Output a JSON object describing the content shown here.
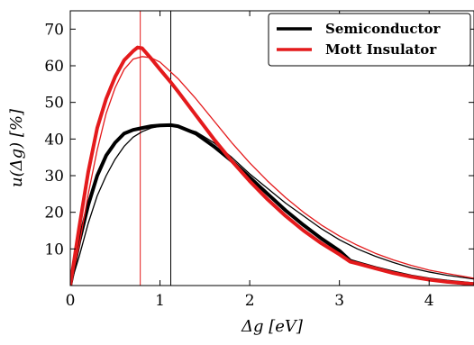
{
  "chart_data": {
    "type": "line",
    "title": "",
    "xlabel": "Δg [eV]",
    "ylabel": "u(Δg) [%]",
    "xlim": [
      0,
      4.5
    ],
    "ylim": [
      0,
      75
    ],
    "x_ticks": [
      0,
      1,
      2,
      3,
      4
    ],
    "y_ticks": [
      10,
      20,
      30,
      40,
      50,
      60,
      70
    ],
    "x_tick_labels": [
      "0",
      "1",
      "2",
      "3",
      "4"
    ],
    "y_tick_labels": [
      "10",
      "20",
      "30",
      "40",
      "50",
      "60",
      "70"
    ],
    "grid": false,
    "legend_position": "top-right",
    "vertical_lines": [
      {
        "x": 1.12,
        "color": "#000000"
      },
      {
        "x": 0.78,
        "color": "#e41a1c"
      }
    ],
    "series": [
      {
        "name": "Semiconductor",
        "color": "#000000",
        "style": "thick",
        "x": [
          0.0,
          0.1,
          0.2,
          0.3,
          0.4,
          0.5,
          0.6,
          0.7,
          0.8,
          0.9,
          1.0,
          1.12,
          1.2,
          1.4,
          1.6,
          1.8,
          2.0,
          2.2,
          2.4,
          2.6,
          2.8,
          3.0,
          3.12,
          3.2,
          3.4,
          3.6,
          3.8,
          4.0,
          4.2,
          4.5
        ],
        "y": [
          0,
          12,
          22,
          30,
          35.5,
          39,
          41.5,
          42.5,
          43,
          43.5,
          43.7,
          43.8,
          43.5,
          41.5,
          38,
          34,
          29.5,
          25,
          20.5,
          16.5,
          12.8,
          9.5,
          6.8,
          6.2,
          4.8,
          3.6,
          2.5,
          1.7,
          1.1,
          0.4
        ]
      },
      {
        "name": "",
        "color": "#000000",
        "style": "thin",
        "x": [
          0.0,
          0.1,
          0.2,
          0.3,
          0.4,
          0.5,
          0.6,
          0.7,
          0.8,
          0.9,
          1.0,
          1.1,
          1.2,
          1.4,
          1.6,
          1.8,
          2.0,
          2.2,
          2.4,
          2.6,
          2.8,
          3.0,
          3.2,
          3.4,
          3.6,
          3.8,
          4.0,
          4.2,
          4.5
        ],
        "y": [
          0,
          8,
          17,
          24.5,
          30,
          34.5,
          38,
          40.5,
          42,
          43,
          43.5,
          43.6,
          43.4,
          42,
          39,
          35,
          30.5,
          26.5,
          22.5,
          19,
          15.5,
          12.5,
          10,
          8,
          6.3,
          4.8,
          3.7,
          2.8,
          1.8
        ]
      },
      {
        "name": "Mott Insulator",
        "color": "#e41a1c",
        "style": "thick",
        "x": [
          0.0,
          0.1,
          0.2,
          0.3,
          0.4,
          0.5,
          0.6,
          0.7,
          0.75,
          0.8,
          0.9,
          1.0,
          1.12,
          1.2,
          1.4,
          1.6,
          1.8,
          2.0,
          2.2,
          2.4,
          2.6,
          2.8,
          3.0,
          3.12,
          3.2,
          3.4,
          3.6,
          3.8,
          4.0,
          4.2,
          4.5
        ],
        "y": [
          0,
          16,
          31,
          43,
          51,
          57,
          61.5,
          64,
          65,
          64.8,
          62,
          59,
          55.5,
          53,
          46.5,
          40,
          34,
          28.5,
          23.5,
          19,
          15,
          11.5,
          8.5,
          6.5,
          6.0,
          4.7,
          3.4,
          2.4,
          1.6,
          1.0,
          0.4
        ]
      },
      {
        "name": "",
        "color": "#e41a1c",
        "style": "thin",
        "x": [
          0.0,
          0.1,
          0.2,
          0.3,
          0.4,
          0.5,
          0.6,
          0.7,
          0.8,
          0.9,
          1.0,
          1.2,
          1.4,
          1.6,
          1.8,
          2.0,
          2.2,
          2.4,
          2.6,
          2.8,
          3.0,
          3.2,
          3.4,
          3.6,
          3.8,
          4.0,
          4.2,
          4.5
        ],
        "y": [
          0,
          11,
          25,
          37,
          47,
          54,
          59,
          61.8,
          62.5,
          62.2,
          61,
          56.5,
          51,
          45,
          39,
          33.5,
          28.5,
          24,
          20,
          16.5,
          13.5,
          11,
          8.8,
          7,
          5.5,
          4.2,
          3.3,
          2.0
        ]
      }
    ]
  }
}
